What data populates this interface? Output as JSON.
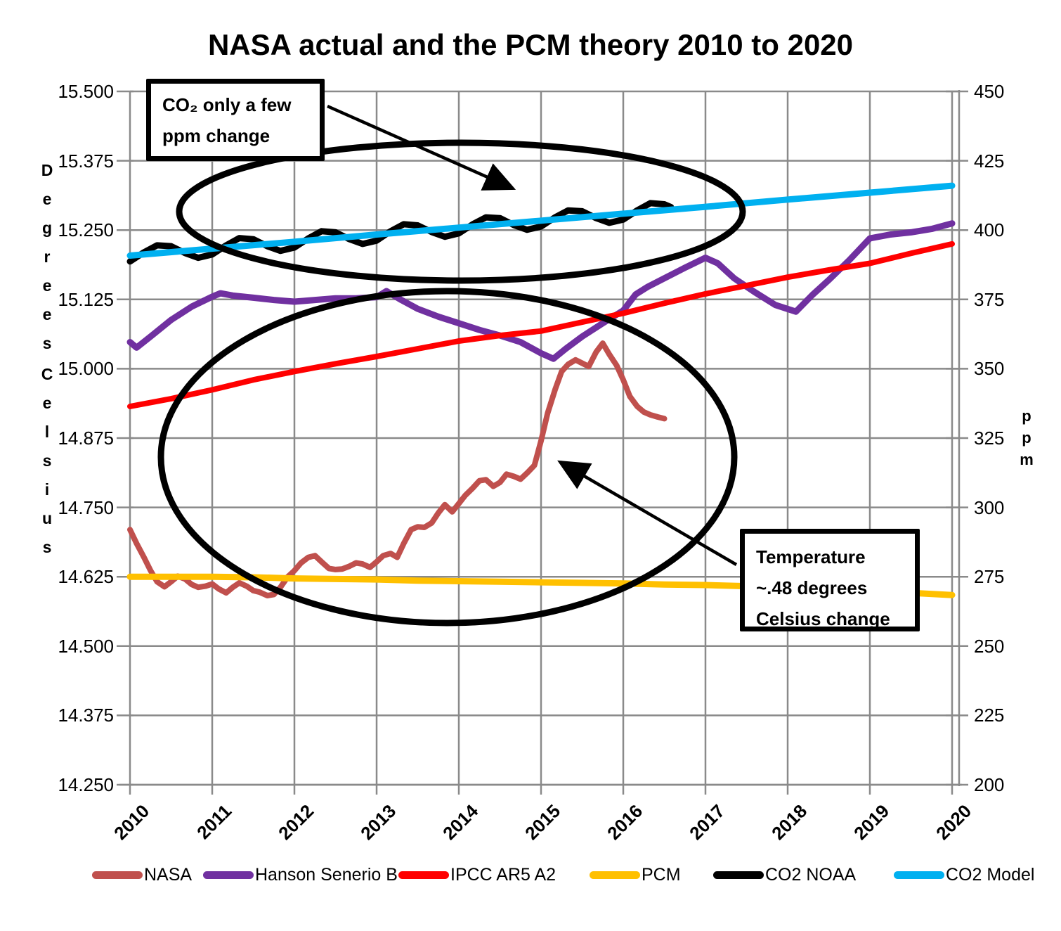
{
  "chart_data": {
    "type": "line",
    "title": "NASA actual and the PCM theory 2010 to 2020",
    "grid": "both",
    "x_axis": {
      "min": 2010,
      "max": 2020,
      "ticks": [
        "2010",
        "2011",
        "2012",
        "2013",
        "2014",
        "2015",
        "2016",
        "2017",
        "2018",
        "2019",
        "2020"
      ]
    },
    "y_left": {
      "title_words": [
        "Degrees",
        "Celsius"
      ],
      "min": 14.25,
      "max": 15.5,
      "ticks": [
        "15.500",
        "15.375",
        "15.250",
        "15.125",
        "15.000",
        "14.875",
        "14.750",
        "14.625",
        "14.500",
        "14.375",
        "14.250"
      ]
    },
    "y_right": {
      "title": "ppm",
      "min": 200,
      "max": 450,
      "ticks": [
        "450",
        "425",
        "400",
        "375",
        "350",
        "325",
        "300",
        "275",
        "250",
        "225",
        "200"
      ]
    },
    "series": [
      {
        "name": "NASA",
        "color": "#C0504D",
        "axis": "left",
        "width": 8,
        "points": [
          [
            2010.0,
            14.71
          ],
          [
            2010.08,
            14.685
          ],
          [
            2010.17,
            14.66
          ],
          [
            2010.25,
            14.636
          ],
          [
            2010.33,
            14.616
          ],
          [
            2010.42,
            14.607
          ],
          [
            2010.5,
            14.616
          ],
          [
            2010.58,
            14.626
          ],
          [
            2010.67,
            14.621
          ],
          [
            2010.75,
            14.611
          ],
          [
            2010.83,
            14.606
          ],
          [
            2010.92,
            14.608
          ],
          [
            2011.0,
            14.612
          ],
          [
            2011.08,
            14.603
          ],
          [
            2011.17,
            14.596
          ],
          [
            2011.25,
            14.606
          ],
          [
            2011.33,
            14.614
          ],
          [
            2011.42,
            14.608
          ],
          [
            2011.5,
            14.6
          ],
          [
            2011.58,
            14.597
          ],
          [
            2011.67,
            14.591
          ],
          [
            2011.75,
            14.593
          ],
          [
            2011.83,
            14.606
          ],
          [
            2011.92,
            14.625
          ],
          [
            2012.0,
            14.636
          ],
          [
            2012.08,
            14.65
          ],
          [
            2012.17,
            14.66
          ],
          [
            2012.25,
            14.663
          ],
          [
            2012.33,
            14.652
          ],
          [
            2012.42,
            14.64
          ],
          [
            2012.5,
            14.638
          ],
          [
            2012.58,
            14.639
          ],
          [
            2012.67,
            14.644
          ],
          [
            2012.75,
            14.65
          ],
          [
            2012.83,
            14.648
          ],
          [
            2012.92,
            14.642
          ],
          [
            2013.0,
            14.652
          ],
          [
            2013.08,
            14.663
          ],
          [
            2013.17,
            14.667
          ],
          [
            2013.25,
            14.66
          ],
          [
            2013.33,
            14.685
          ],
          [
            2013.42,
            14.71
          ],
          [
            2013.5,
            14.715
          ],
          [
            2013.58,
            14.714
          ],
          [
            2013.67,
            14.722
          ],
          [
            2013.75,
            14.74
          ],
          [
            2013.83,
            14.755
          ],
          [
            2013.92,
            14.742
          ],
          [
            2014.0,
            14.757
          ],
          [
            2014.08,
            14.772
          ],
          [
            2014.17,
            14.785
          ],
          [
            2014.25,
            14.798
          ],
          [
            2014.33,
            14.8
          ],
          [
            2014.42,
            14.788
          ],
          [
            2014.5,
            14.795
          ],
          [
            2014.58,
            14.81
          ],
          [
            2014.67,
            14.806
          ],
          [
            2014.75,
            14.801
          ],
          [
            2014.83,
            14.812
          ],
          [
            2014.92,
            14.826
          ],
          [
            2015.0,
            14.87
          ],
          [
            2015.08,
            14.92
          ],
          [
            2015.17,
            14.962
          ],
          [
            2015.25,
            14.995
          ],
          [
            2015.33,
            15.008
          ],
          [
            2015.42,
            15.016
          ],
          [
            2015.5,
            15.01
          ],
          [
            2015.58,
            15.004
          ],
          [
            2015.67,
            15.03
          ],
          [
            2015.75,
            15.046
          ],
          [
            2015.83,
            15.026
          ],
          [
            2015.92,
            15.006
          ],
          [
            2016.0,
            14.98
          ],
          [
            2016.08,
            14.95
          ],
          [
            2016.17,
            14.932
          ],
          [
            2016.25,
            14.922
          ],
          [
            2016.33,
            14.917
          ],
          [
            2016.42,
            14.913
          ],
          [
            2016.5,
            14.91
          ]
        ]
      },
      {
        "name": "Hanson Senerio B",
        "color": "#7030A0",
        "axis": "left",
        "width": 9,
        "points": [
          [
            2010.0,
            15.048
          ],
          [
            2010.08,
            15.038
          ],
          [
            2010.25,
            15.058
          ],
          [
            2010.5,
            15.088
          ],
          [
            2010.75,
            15.112
          ],
          [
            2011.0,
            15.13
          ],
          [
            2011.1,
            15.136
          ],
          [
            2011.25,
            15.132
          ],
          [
            2011.5,
            15.128
          ],
          [
            2011.75,
            15.124
          ],
          [
            2012.0,
            15.121
          ],
          [
            2012.25,
            15.124
          ],
          [
            2012.5,
            15.127
          ],
          [
            2012.75,
            15.127
          ],
          [
            2013.0,
            15.129
          ],
          [
            2013.12,
            15.14
          ],
          [
            2013.3,
            15.124
          ],
          [
            2013.5,
            15.108
          ],
          [
            2013.75,
            15.094
          ],
          [
            2014.0,
            15.082
          ],
          [
            2014.25,
            15.07
          ],
          [
            2014.5,
            15.06
          ],
          [
            2014.75,
            15.048
          ],
          [
            2015.0,
            15.028
          ],
          [
            2015.15,
            15.018
          ],
          [
            2015.3,
            15.036
          ],
          [
            2015.5,
            15.058
          ],
          [
            2015.75,
            15.082
          ],
          [
            2016.0,
            15.105
          ],
          [
            2016.15,
            15.134
          ],
          [
            2016.3,
            15.148
          ],
          [
            2016.5,
            15.163
          ],
          [
            2016.75,
            15.182
          ],
          [
            2017.0,
            15.2
          ],
          [
            2017.15,
            15.19
          ],
          [
            2017.35,
            15.163
          ],
          [
            2017.6,
            15.138
          ],
          [
            2017.85,
            15.115
          ],
          [
            2018.1,
            15.103
          ],
          [
            2018.3,
            15.133
          ],
          [
            2018.5,
            15.16
          ],
          [
            2018.75,
            15.196
          ],
          [
            2019.0,
            15.235
          ],
          [
            2019.25,
            15.242
          ],
          [
            2019.5,
            15.246
          ],
          [
            2019.75,
            15.252
          ],
          [
            2020.0,
            15.262
          ]
        ]
      },
      {
        "name": "IPCC AR5 A2",
        "color": "#FF0000",
        "axis": "left",
        "width": 8,
        "points": [
          [
            2010,
            14.932
          ],
          [
            2010.5,
            14.946
          ],
          [
            2011,
            14.962
          ],
          [
            2011.5,
            14.98
          ],
          [
            2012,
            14.995
          ],
          [
            2012.5,
            15.009
          ],
          [
            2013,
            15.022
          ],
          [
            2013.5,
            15.036
          ],
          [
            2014,
            15.05
          ],
          [
            2014.5,
            15.06
          ],
          [
            2015,
            15.068
          ],
          [
            2015.5,
            15.084
          ],
          [
            2016,
            15.1
          ],
          [
            2016.5,
            15.118
          ],
          [
            2017,
            15.135
          ],
          [
            2017.5,
            15.15
          ],
          [
            2018,
            15.165
          ],
          [
            2018.5,
            15.178
          ],
          [
            2019,
            15.19
          ],
          [
            2019.5,
            15.208
          ],
          [
            2020,
            15.225
          ]
        ]
      },
      {
        "name": "PCM",
        "color": "#FFC000",
        "axis": "left",
        "width": 9,
        "points": [
          [
            2010,
            14.625
          ],
          [
            2010.5,
            14.625
          ],
          [
            2011,
            14.625
          ],
          [
            2011.5,
            14.624
          ],
          [
            2012,
            14.622
          ],
          [
            2012.5,
            14.621
          ],
          [
            2013,
            14.62
          ],
          [
            2013.5,
            14.618
          ],
          [
            2014,
            14.617
          ],
          [
            2014.5,
            14.616
          ],
          [
            2015,
            14.615
          ],
          [
            2015.5,
            14.614
          ],
          [
            2016,
            14.613
          ],
          [
            2016.5,
            14.611
          ],
          [
            2017,
            14.61
          ],
          [
            2017.5,
            14.608
          ],
          [
            2018,
            14.606
          ],
          [
            2018.5,
            14.603
          ],
          [
            2019,
            14.6
          ],
          [
            2019.5,
            14.596
          ],
          [
            2020,
            14.592
          ]
        ]
      },
      {
        "name": "CO2 NOAA",
        "color": "#000000",
        "axis": "right",
        "width": 9,
        "points": [
          [
            2010.0,
            388.7
          ],
          [
            2010.17,
            392.0
          ],
          [
            2010.33,
            394.5
          ],
          [
            2010.5,
            394.2
          ],
          [
            2010.67,
            391.7
          ],
          [
            2010.83,
            390.0
          ],
          [
            2011.0,
            391.2
          ],
          [
            2011.17,
            394.5
          ],
          [
            2011.33,
            397.1
          ],
          [
            2011.5,
            396.7
          ],
          [
            2011.67,
            394.2
          ],
          [
            2011.83,
            392.5
          ],
          [
            2012.0,
            393.7
          ],
          [
            2012.17,
            397.0
          ],
          [
            2012.33,
            399.6
          ],
          [
            2012.5,
            399.2
          ],
          [
            2012.67,
            396.7
          ],
          [
            2012.83,
            395.0
          ],
          [
            2013.0,
            396.2
          ],
          [
            2013.17,
            399.6
          ],
          [
            2013.33,
            402.1
          ],
          [
            2013.5,
            401.7
          ],
          [
            2013.67,
            399.3
          ],
          [
            2013.83,
            397.6
          ],
          [
            2014.0,
            398.8
          ],
          [
            2014.17,
            402.1
          ],
          [
            2014.33,
            404.6
          ],
          [
            2014.5,
            404.3
          ],
          [
            2014.67,
            401.8
          ],
          [
            2014.83,
            400.1
          ],
          [
            2015.0,
            401.3
          ],
          [
            2015.17,
            404.6
          ],
          [
            2015.33,
            407.1
          ],
          [
            2015.5,
            406.8
          ],
          [
            2015.67,
            404.3
          ],
          [
            2015.83,
            402.6
          ],
          [
            2016.0,
            403.8
          ],
          [
            2016.17,
            407.1
          ],
          [
            2016.33,
            409.7
          ],
          [
            2016.5,
            409.3
          ],
          [
            2016.58,
            408.3
          ]
        ]
      },
      {
        "name": "CO2 Model",
        "color": "#00B0F0",
        "axis": "right",
        "width": 9,
        "points": [
          [
            2010,
            390.8
          ],
          [
            2011,
            393.3
          ],
          [
            2012,
            395.8
          ],
          [
            2013,
            398.4
          ],
          [
            2014,
            400.9
          ],
          [
            2015,
            403.4
          ],
          [
            2016,
            405.9
          ],
          [
            2017,
            408.4
          ],
          [
            2018,
            411.0
          ],
          [
            2019,
            413.5
          ],
          [
            2020,
            416.0
          ]
        ]
      }
    ],
    "annotations": {
      "co2_box": {
        "line1": "CO₂ only a few",
        "line2": "ppm change"
      },
      "temp_box": {
        "line1": "Temperature",
        "line2": "~.48 degrees",
        "line3": "Celsius change"
      }
    },
    "legend": [
      {
        "label": "NASA",
        "color": "#C0504D"
      },
      {
        "label": "Hanson Senerio B",
        "color": "#7030A0"
      },
      {
        "label": "IPCC AR5 A2",
        "color": "#FF0000"
      },
      {
        "label": "PCM",
        "color": "#FFC000"
      },
      {
        "label": "CO2 NOAA",
        "color": "#000000"
      },
      {
        "label": "CO2 Model",
        "color": "#00B0F0"
      }
    ],
    "colors": {
      "gridline": "#8a8a8a",
      "background": "#ffffff",
      "annotation_ink": "#000000"
    }
  }
}
